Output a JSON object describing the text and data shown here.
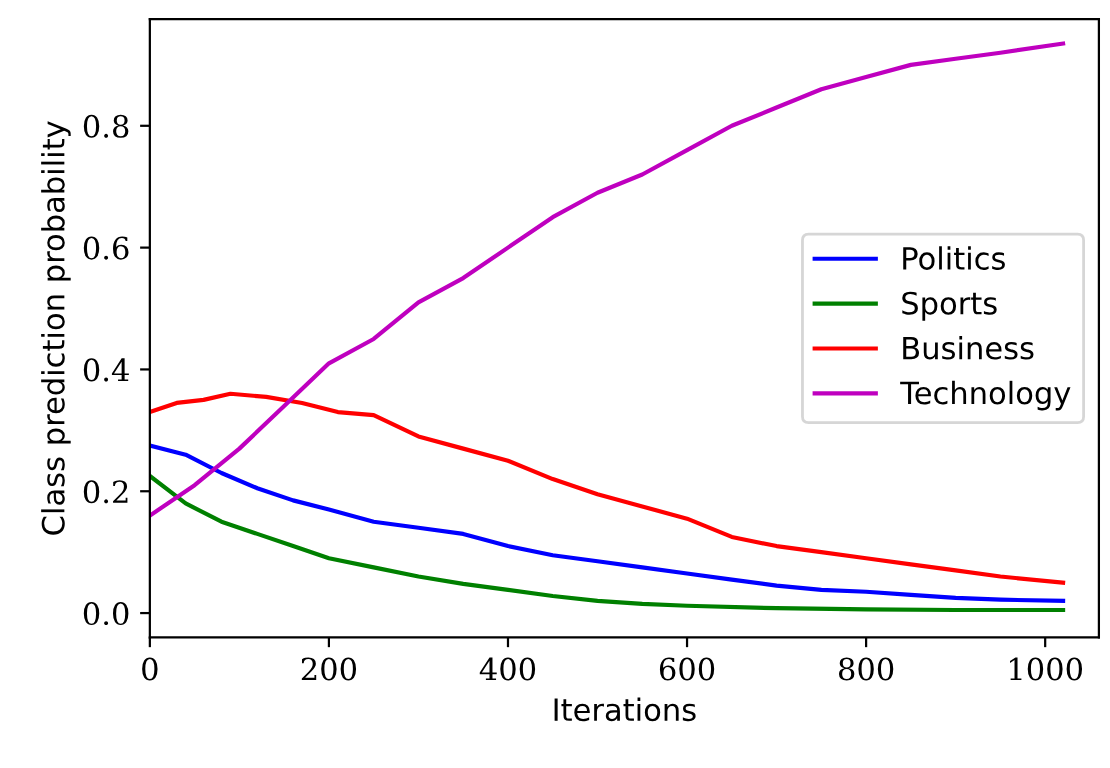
{
  "chart_data": {
    "type": "line",
    "xlabel": "Iterations",
    "ylabel": "Class prediction probability",
    "xlim": [
      0,
      1060
    ],
    "ylim": [
      -0.04,
      0.975
    ],
    "xticks": [
      0,
      200,
      400,
      600,
      800,
      1000
    ],
    "yticks": [
      {
        "value": 0,
        "label": "0.0"
      },
      0.2,
      0.4,
      0.6,
      0.8
    ],
    "legend": "right",
    "grid": false,
    "series": [
      {
        "name": "Politics",
        "color": "#0000ff",
        "x": [
          0,
          40,
          80,
          120,
          160,
          200,
          250,
          300,
          350,
          400,
          450,
          500,
          550,
          600,
          650,
          700,
          750,
          800,
          850,
          900,
          950,
          1020
        ],
        "values": [
          0.275,
          0.26,
          0.23,
          0.205,
          0.185,
          0.17,
          0.15,
          0.14,
          0.13,
          0.11,
          0.095,
          0.085,
          0.075,
          0.065,
          0.055,
          0.045,
          0.038,
          0.035,
          0.03,
          0.025,
          0.022,
          0.02
        ]
      },
      {
        "name": "Sports",
        "color": "#008000",
        "x": [
          0,
          40,
          80,
          120,
          160,
          200,
          250,
          300,
          350,
          400,
          450,
          500,
          550,
          600,
          700,
          800,
          900,
          1020
        ],
        "values": [
          0.225,
          0.18,
          0.15,
          0.13,
          0.11,
          0.09,
          0.075,
          0.06,
          0.048,
          0.038,
          0.028,
          0.02,
          0.015,
          0.012,
          0.008,
          0.006,
          0.005,
          0.005
        ]
      },
      {
        "name": "Business",
        "color": "#ff0000",
        "x": [
          0,
          30,
          60,
          90,
          130,
          170,
          210,
          250,
          300,
          350,
          400,
          450,
          500,
          550,
          600,
          650,
          700,
          750,
          800,
          850,
          900,
          950,
          1020
        ],
        "values": [
          0.33,
          0.345,
          0.35,
          0.36,
          0.355,
          0.345,
          0.33,
          0.325,
          0.29,
          0.27,
          0.25,
          0.22,
          0.195,
          0.175,
          0.155,
          0.125,
          0.11,
          0.1,
          0.09,
          0.08,
          0.07,
          0.06,
          0.05
        ]
      },
      {
        "name": "Technology",
        "color": "#bf00bf",
        "x": [
          0,
          50,
          100,
          150,
          200,
          250,
          300,
          350,
          400,
          450,
          500,
          550,
          600,
          650,
          700,
          750,
          800,
          850,
          900,
          950,
          1020
        ],
        "values": [
          0.16,
          0.21,
          0.27,
          0.34,
          0.41,
          0.45,
          0.51,
          0.55,
          0.6,
          0.65,
          0.69,
          0.72,
          0.76,
          0.8,
          0.83,
          0.86,
          0.88,
          0.9,
          0.91,
          0.92,
          0.935
        ]
      }
    ]
  }
}
